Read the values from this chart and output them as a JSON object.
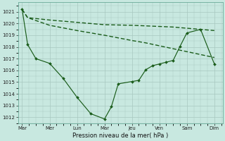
{
  "bg_color": "#c8e8e0",
  "grid_color": "#a8c8c0",
  "line_color": "#1a5c1a",
  "title": "Pression niveau de la mer( hPa )",
  "x_labels": [
    "Mar",
    "Mer",
    "Lun",
    "Mar",
    "Jeu",
    "Ven",
    "Sam",
    "Dim"
  ],
  "ylim": [
    1011.5,
    1021.8
  ],
  "yticks": [
    1012,
    1013,
    1014,
    1015,
    1016,
    1017,
    1018,
    1019,
    1020,
    1021
  ],
  "n_cols": 8,
  "line1_x": [
    0.0,
    0.2,
    1.0,
    2.0,
    3.0,
    4.0,
    4.5,
    5.0,
    5.5,
    6.0,
    6.5,
    7.0
  ],
  "line1_y": [
    1021.2,
    1020.5,
    1020.3,
    1020.1,
    1019.9,
    1019.85,
    1019.8,
    1019.75,
    1019.7,
    1019.6,
    1019.5,
    1019.4
  ],
  "line2_x": [
    0.0,
    0.2,
    1.0,
    2.0,
    3.0,
    4.0,
    4.5,
    5.0,
    5.5,
    6.0,
    6.5,
    7.0
  ],
  "line2_y": [
    1021.2,
    1020.5,
    1019.85,
    1019.4,
    1019.0,
    1018.55,
    1018.35,
    1018.1,
    1017.85,
    1017.6,
    1017.35,
    1017.1
  ],
  "line3_x": [
    0.0,
    0.2,
    0.5,
    1.0,
    1.5,
    2.0,
    2.5,
    3.0,
    3.25,
    3.5,
    4.0,
    4.25,
    4.5,
    4.75,
    5.0,
    5.25,
    5.5,
    5.75,
    6.0,
    6.5,
    7.0
  ],
  "line3_y": [
    1021.2,
    1018.2,
    1017.0,
    1016.6,
    1015.3,
    1013.7,
    1012.3,
    1011.85,
    1012.9,
    1014.85,
    1015.05,
    1015.15,
    1016.05,
    1016.4,
    1016.55,
    1016.7,
    1016.85,
    1018.05,
    1019.2,
    1019.5,
    1016.55
  ]
}
